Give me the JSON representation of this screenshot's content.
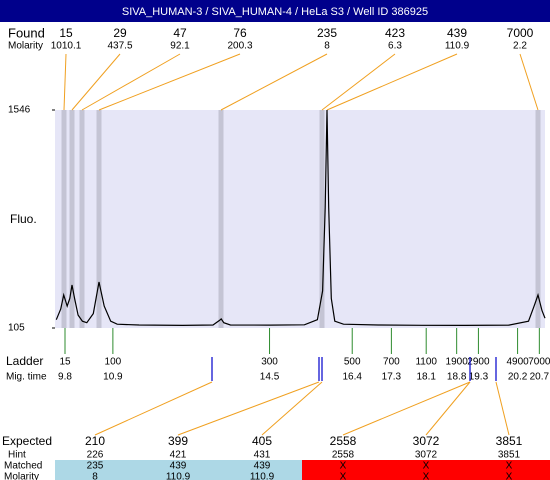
{
  "header": {
    "title": "SIVA_HUMAN-3 / SIVA_HUMAN-4 / HeLa S3 / Well ID 386925"
  },
  "labels": {
    "found": "Found",
    "molarity": "Molarity",
    "ladder": "Ladder",
    "mig_time": "Mig. time",
    "expected": "Expected",
    "hint": "Hint",
    "matched": "Matched",
    "molarity_row": "Molarity"
  },
  "found": {
    "sizes": [
      "15",
      "29",
      "47",
      "76",
      "235",
      "423",
      "439",
      "7000"
    ],
    "molarity": [
      "1010.1",
      "437.5",
      "92.1",
      "200.3",
      "8",
      "6.3",
      "110.9",
      "2.2"
    ]
  },
  "ladder": {
    "sizes": [
      "15",
      "100",
      "300",
      "500",
      "700",
      "1100",
      "1900",
      "2900",
      "4900",
      "7000"
    ],
    "times": [
      9.8,
      10.9,
      14.5,
      16.4,
      17.3,
      18.1,
      18.8,
      19.3,
      20.2,
      20.7
    ]
  },
  "expected": {
    "sizes": [
      "210",
      "399",
      "405",
      "2558",
      "3072",
      "3851"
    ],
    "hint": [
      "226",
      "421",
      "431",
      "2558",
      "3072",
      "3851"
    ],
    "matched": [
      "235",
      "439",
      "439",
      "X",
      "X",
      "X"
    ],
    "molarity": [
      "8",
      "110.9",
      "110.9",
      "X",
      "X",
      "X"
    ]
  },
  "chart_data": {
    "type": "line",
    "ylabel": "Fluo.",
    "color": "#000000",
    "x": [
      9.6,
      9.7,
      9.77,
      9.85,
      9.91,
      9.96,
      10.02,
      10.1,
      10.2,
      10.3,
      10.45,
      10.58,
      10.7,
      10.85,
      11.0,
      11.5,
      12.5,
      13.2,
      13.35,
      13.39,
      13.45,
      13.6,
      14.5,
      15.3,
      15.6,
      15.72,
      15.78,
      15.82,
      15.86,
      15.92,
      16.0,
      16.2,
      17.0,
      18.0,
      19.0,
      20.0,
      20.45,
      20.58,
      20.67,
      20.76,
      20.83
    ],
    "values": [
      160,
      230,
      323,
      250,
      300,
      389,
      300,
      190,
      150,
      140,
      200,
      409,
      250,
      150,
      130,
      125,
      122,
      125,
      155,
      165,
      140,
      125,
      124,
      126,
      160,
      350,
      900,
      1546,
      900,
      300,
      150,
      130,
      125,
      123,
      122,
      124,
      150,
      250,
      323,
      220,
      170
    ],
    "xlim": [
      9.57,
      20.83
    ],
    "ylim": [
      105,
      1546
    ],
    "yticks": [
      105,
      1546
    ]
  }
}
